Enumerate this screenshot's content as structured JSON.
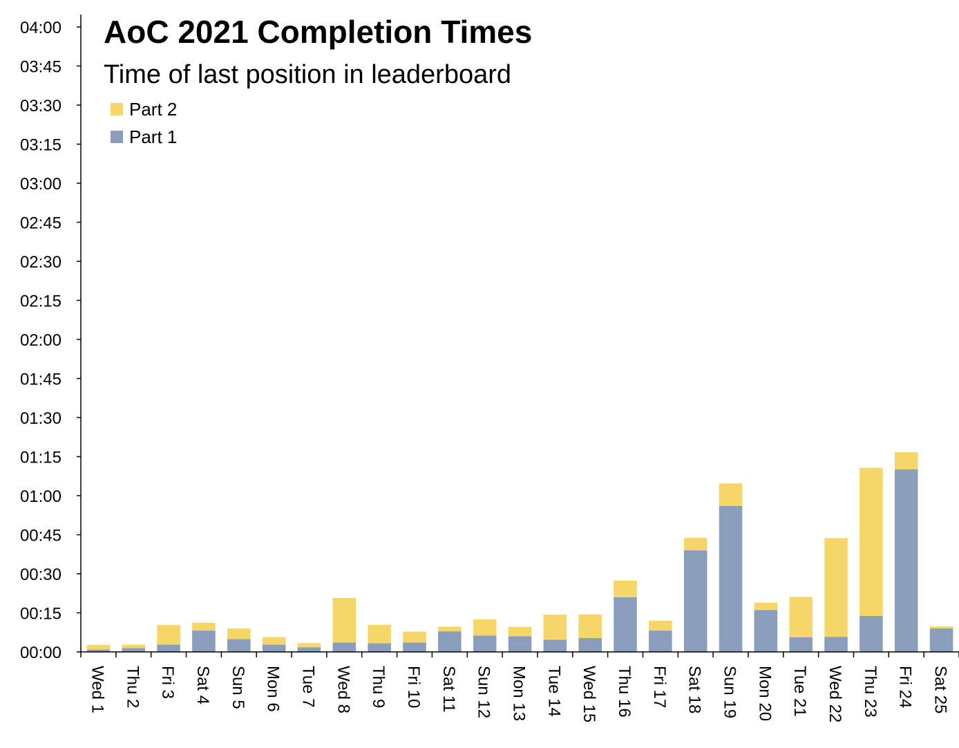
{
  "chart_data": {
    "type": "bar",
    "stacked": true,
    "title": "AoC 2021 Completion Times",
    "subtitle": "Time of last position in leaderboard",
    "xlabel": "",
    "ylabel": "",
    "y_unit": "minutes",
    "ylim": [
      0,
      240
    ],
    "y_tick_values": [
      0,
      15,
      30,
      45,
      60,
      75,
      90,
      105,
      120,
      135,
      150,
      165,
      180,
      195,
      210,
      225,
      240
    ],
    "y_tick_labels": [
      "00:00",
      "00:15",
      "00:30",
      "00:45",
      "01:00",
      "01:15",
      "01:30",
      "01:45",
      "02:00",
      "02:15",
      "02:30",
      "02:45",
      "03:00",
      "03:15",
      "03:30",
      "03:45",
      "04:00"
    ],
    "categories": [
      "Wed 1",
      "Thu 2",
      "Fri 3",
      "Sat 4",
      "Sun 5",
      "Mon 6",
      "Tue 7",
      "Wed 8",
      "Thu 9",
      "Fri 10",
      "Sat 11",
      "Sun 12",
      "Mon 13",
      "Tue 14",
      "Wed 15",
      "Thu 16",
      "Fri 17",
      "Sat 18",
      "Sun 19",
      "Mon 20",
      "Tue 21",
      "Wed 22",
      "Thu 23",
      "Fri 24",
      "Sat 25"
    ],
    "series": [
      {
        "name": "Part 1",
        "color": "#8a9dba",
        "values": [
          0.9,
          1.5,
          2.8,
          8.2,
          4.9,
          2.8,
          1.8,
          3.6,
          3.3,
          3.6,
          7.9,
          6.3,
          6.0,
          4.7,
          5.3,
          21.0,
          8.2,
          39.0,
          56.1,
          16.1,
          5.6,
          5.8,
          13.8,
          70.1,
          9.0
        ]
      },
      {
        "name": "Part 2",
        "color": "#f7d668",
        "values": [
          1.8,
          1.3,
          7.5,
          3.0,
          4.1,
          2.9,
          1.6,
          17.1,
          7.1,
          4.2,
          1.8,
          6.2,
          3.6,
          9.6,
          9.1,
          6.4,
          3.8,
          4.8,
          8.6,
          2.8,
          15.5,
          37.9,
          56.9,
          6.6,
          0.8
        ]
      }
    ],
    "legend": [
      "Part 2",
      "Part 1"
    ],
    "legend_position": "top-left",
    "grid": false
  }
}
